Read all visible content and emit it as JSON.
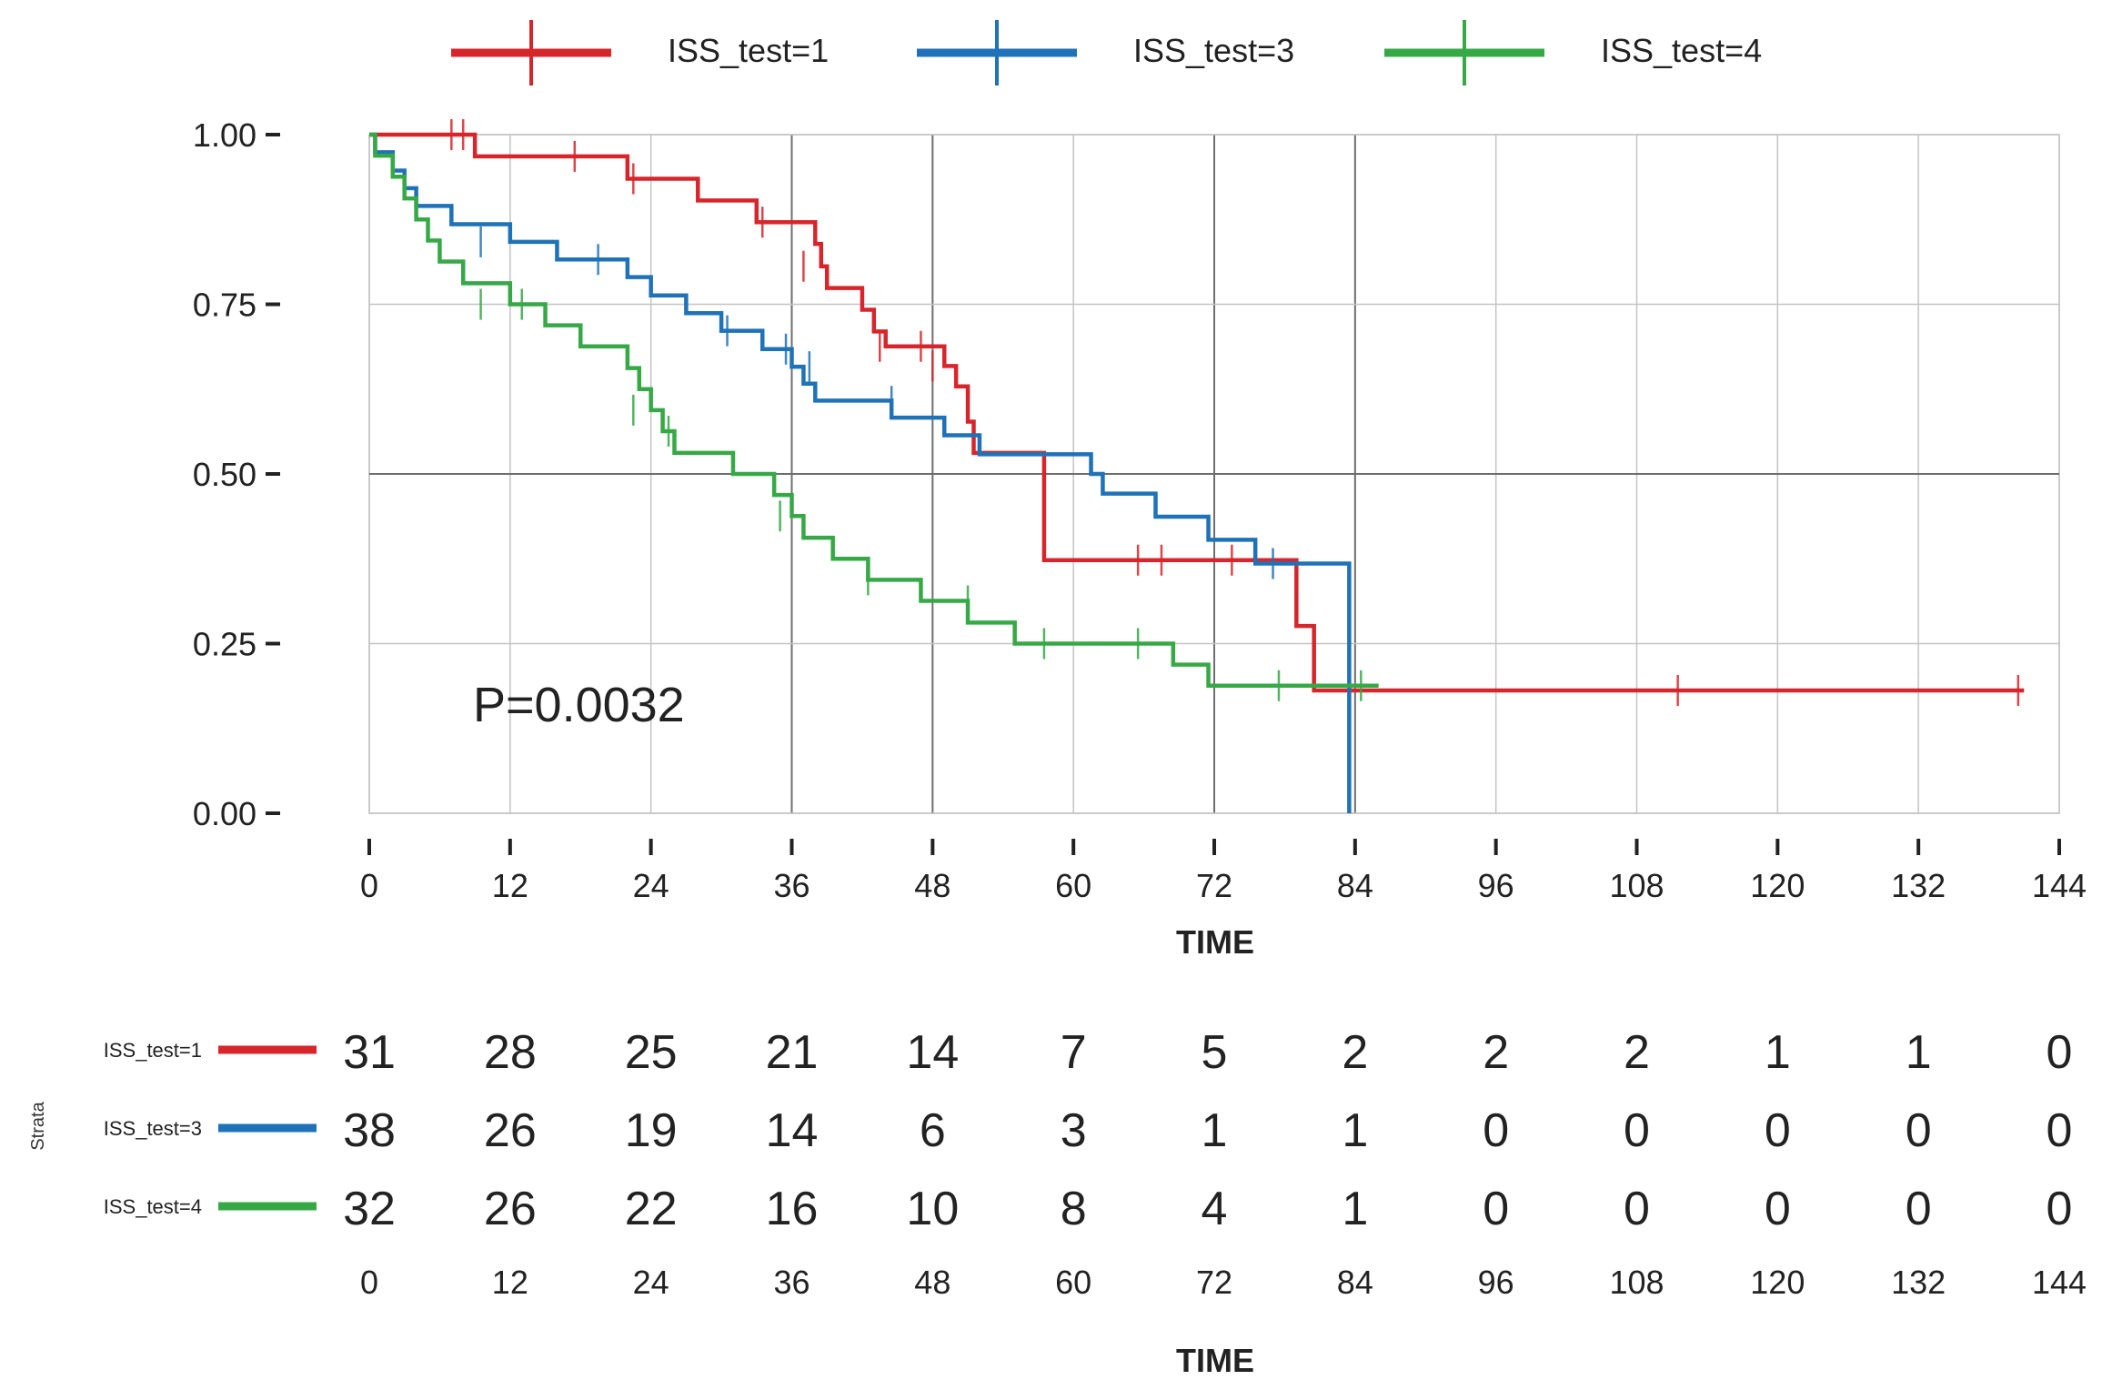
{
  "chart_data": {
    "type": "line",
    "subtype": "kaplan-meier",
    "xlabel": "TIME",
    "ylabel": "",
    "xlim": [
      0,
      144
    ],
    "ylim": [
      0,
      1
    ],
    "xticks": [
      0,
      12,
      24,
      36,
      48,
      60,
      72,
      84,
      96,
      108,
      120,
      132,
      144
    ],
    "yticks": [
      0.0,
      0.25,
      0.5,
      0.75,
      1.0
    ],
    "ytick_labels": [
      "0.00",
      "0.25",
      "0.50",
      "0.75",
      "1.00"
    ],
    "grid": true,
    "legend_position": "top",
    "annotation": "P=0.0032",
    "series": [
      {
        "name": "ISS_test=1",
        "color": "#d7262b",
        "steps": [
          [
            0,
            1.0
          ],
          [
            9,
            0.968
          ],
          [
            22,
            0.935
          ],
          [
            28,
            0.903
          ],
          [
            33,
            0.871
          ],
          [
            38,
            0.839
          ],
          [
            38.5,
            0.806
          ],
          [
            39,
            0.774
          ],
          [
            42,
            0.742
          ],
          [
            43,
            0.71
          ],
          [
            44,
            0.688
          ],
          [
            49,
            0.659
          ],
          [
            50,
            0.629
          ],
          [
            51,
            0.577
          ],
          [
            51.5,
            0.531
          ],
          [
            57.5,
            0.373
          ],
          [
            79,
            0.276
          ],
          [
            80.5,
            0.181
          ],
          [
            141,
            0.181
          ]
        ],
        "censored": [
          [
            7,
            1.0
          ],
          [
            8,
            1.0
          ],
          [
            17.5,
            0.968
          ],
          [
            22.5,
            0.935
          ],
          [
            33.5,
            0.871
          ],
          [
            37,
            0.806
          ],
          [
            43.5,
            0.688
          ],
          [
            47,
            0.688
          ],
          [
            48,
            0.659
          ],
          [
            65.5,
            0.373
          ],
          [
            67.5,
            0.373
          ],
          [
            73.5,
            0.373
          ],
          [
            111.5,
            0.181
          ],
          [
            140.5,
            0.181
          ]
        ]
      },
      {
        "name": "ISS_test=3",
        "color": "#1f72b8",
        "steps": [
          [
            0,
            1.0
          ],
          [
            0.5,
            0.974
          ],
          [
            2,
            0.947
          ],
          [
            3,
            0.921
          ],
          [
            4,
            0.895
          ],
          [
            7,
            0.868
          ],
          [
            12,
            0.842
          ],
          [
            16,
            0.816
          ],
          [
            22,
            0.79
          ],
          [
            24,
            0.763
          ],
          [
            27,
            0.737
          ],
          [
            30,
            0.711
          ],
          [
            33.5,
            0.684
          ],
          [
            36,
            0.658
          ],
          [
            37,
            0.633
          ],
          [
            38,
            0.608
          ],
          [
            44.5,
            0.583
          ],
          [
            49,
            0.557
          ],
          [
            52,
            0.529
          ],
          [
            61.5,
            0.5
          ],
          [
            62.5,
            0.471
          ],
          [
            67,
            0.437
          ],
          [
            71.5,
            0.403
          ],
          [
            75.5,
            0.368
          ],
          [
            83.5,
            0.368
          ]
        ],
        "censored": [
          [
            9.5,
            0.842
          ],
          [
            19.5,
            0.816
          ],
          [
            30.5,
            0.711
          ],
          [
            35.5,
            0.684
          ],
          [
            37.5,
            0.658
          ],
          [
            44.5,
            0.607
          ],
          [
            77,
            0.368
          ]
        ],
        "final_drop_at": 83.5
      },
      {
        "name": "ISS_test=4",
        "color": "#36a946",
        "steps": [
          [
            0,
            1.0
          ],
          [
            0.5,
            0.969
          ],
          [
            2,
            0.938
          ],
          [
            3,
            0.906
          ],
          [
            4,
            0.875
          ],
          [
            5,
            0.844
          ],
          [
            6,
            0.813
          ],
          [
            8,
            0.781
          ],
          [
            12,
            0.75
          ],
          [
            15,
            0.719
          ],
          [
            18,
            0.688
          ],
          [
            22,
            0.656
          ],
          [
            23,
            0.625
          ],
          [
            24,
            0.594
          ],
          [
            25,
            0.563
          ],
          [
            26,
            0.531
          ],
          [
            31,
            0.5
          ],
          [
            34.5,
            0.469
          ],
          [
            36,
            0.438
          ],
          [
            37,
            0.406
          ],
          [
            39.5,
            0.375
          ],
          [
            42.5,
            0.344
          ],
          [
            47,
            0.313
          ],
          [
            51,
            0.281
          ],
          [
            55,
            0.25
          ],
          [
            68.5,
            0.219
          ],
          [
            71.5,
            0.188
          ],
          [
            86,
            0.188
          ]
        ],
        "censored": [
          [
            9.5,
            0.75
          ],
          [
            13,
            0.75
          ],
          [
            22.5,
            0.594
          ],
          [
            25.5,
            0.563
          ],
          [
            35,
            0.438
          ],
          [
            42.5,
            0.344
          ],
          [
            51,
            0.313
          ],
          [
            57.5,
            0.25
          ],
          [
            65.5,
            0.25
          ],
          [
            77.5,
            0.188
          ],
          [
            84.5,
            0.188
          ]
        ]
      }
    ],
    "risk_table": {
      "ylabel": "Strata",
      "xlabel": "TIME",
      "times": [
        0,
        12,
        24,
        36,
        48,
        60,
        72,
        84,
        96,
        108,
        120,
        132,
        144
      ],
      "rows": [
        {
          "name": "ISS_test=1",
          "color": "#d7262b",
          "counts": [
            31,
            28,
            25,
            21,
            14,
            7,
            5,
            2,
            2,
            2,
            1,
            1,
            0
          ]
        },
        {
          "name": "ISS_test=3",
          "color": "#1f72b8",
          "counts": [
            38,
            26,
            19,
            14,
            6,
            3,
            1,
            1,
            0,
            0,
            0,
            0,
            0
          ]
        },
        {
          "name": "ISS_test=4",
          "color": "#36a946",
          "counts": [
            32,
            26,
            22,
            16,
            10,
            8,
            4,
            1,
            0,
            0,
            0,
            0,
            0
          ]
        }
      ]
    }
  }
}
